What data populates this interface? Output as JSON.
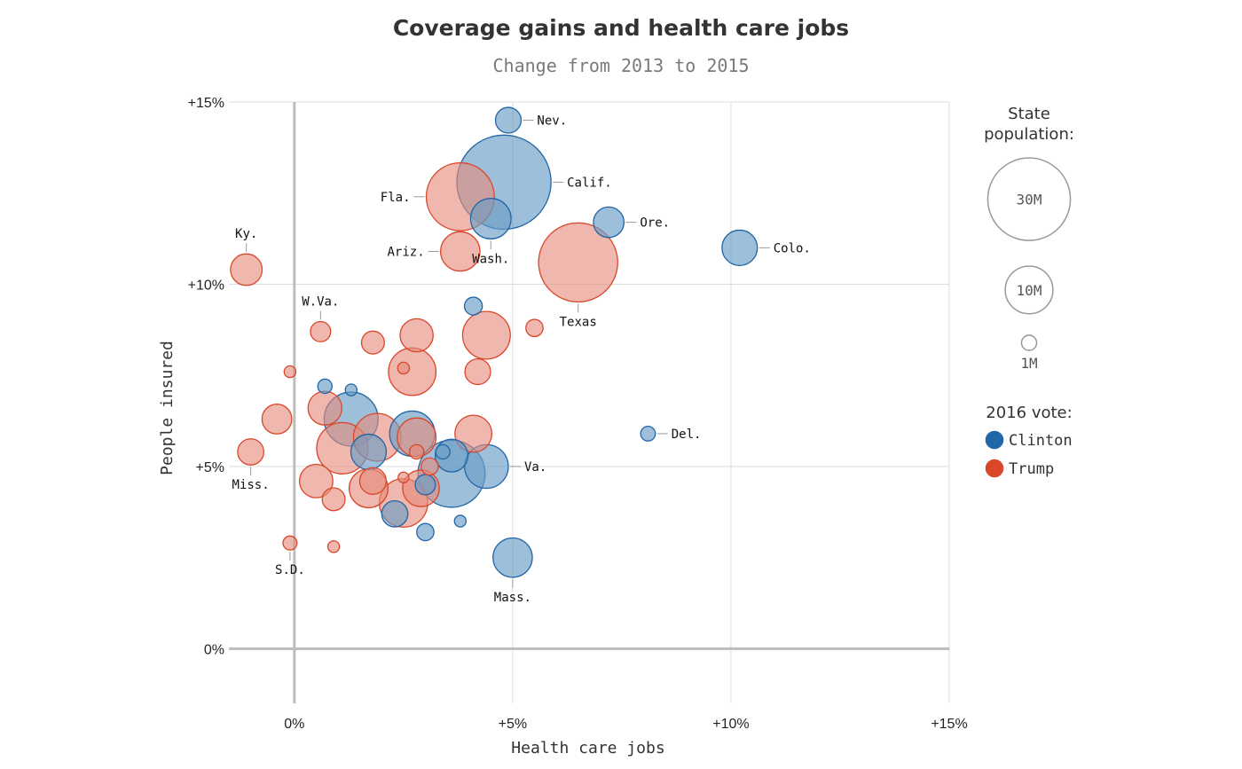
{
  "chart_data": {
    "type": "scatter",
    "title": "Coverage gains and health care jobs",
    "subtitle": "Change from 2013 to 2015",
    "xlabel": "Health care jobs",
    "ylabel": "People insured",
    "xlim": [
      -1.5,
      15
    ],
    "ylim": [
      -1.5,
      15
    ],
    "x_ticks": [
      0,
      5,
      10,
      15
    ],
    "y_ticks": [
      0,
      5,
      10,
      15
    ],
    "x_tick_labels": [
      "0%",
      "+5%",
      "+10%",
      "+15%"
    ],
    "y_tick_labels": [
      "0%",
      "+5%",
      "+10%",
      "+15%"
    ],
    "grid": true,
    "colors": {
      "Clinton": "#2166a6",
      "Trump": "#d9472b"
    },
    "legend": {
      "size_title": "State population:",
      "size_entries": [
        {
          "label": "30M",
          "pop": 30
        },
        {
          "label": "10M",
          "pop": 10
        },
        {
          "label": "1M",
          "pop": 1
        }
      ],
      "vote_title": "2016 vote:",
      "vote_entries": [
        {
          "label": "Clinton",
          "party": "Clinton"
        },
        {
          "label": "Trump",
          "party": "Trump"
        }
      ],
      "placement": "right"
    },
    "points": [
      {
        "label": "Nev.",
        "x": 4.9,
        "y": 14.5,
        "pop": 2.9,
        "party": "Clinton",
        "lpos": "right"
      },
      {
        "label": "Calif.",
        "x": 4.8,
        "y": 12.8,
        "pop": 39,
        "party": "Clinton",
        "lpos": "right"
      },
      {
        "label": "Fla.",
        "x": 3.8,
        "y": 12.4,
        "pop": 20.3,
        "party": "Trump",
        "lpos": "left"
      },
      {
        "label": "Wash.",
        "x": 4.5,
        "y": 11.8,
        "pop": 7.2,
        "party": "Clinton",
        "lpos": "below"
      },
      {
        "label": "Ore.",
        "x": 7.2,
        "y": 11.7,
        "pop": 4.1,
        "party": "Clinton",
        "lpos": "right"
      },
      {
        "label": "Ariz.",
        "x": 3.8,
        "y": 10.9,
        "pop": 6.8,
        "party": "Trump",
        "lpos": "left"
      },
      {
        "label": "Colo.",
        "x": 10.2,
        "y": 11.0,
        "pop": 5.5,
        "party": "Clinton",
        "lpos": "right"
      },
      {
        "label": "Texas",
        "x": 6.5,
        "y": 10.6,
        "pop": 27.5,
        "party": "Trump",
        "lpos": "below"
      },
      {
        "label": "Ky.",
        "x": -1.1,
        "y": 10.4,
        "pop": 4.4,
        "party": "Trump",
        "lpos": "above"
      },
      {
        "label": "W.Va.",
        "x": 0.6,
        "y": 8.7,
        "pop": 1.8,
        "party": "Trump",
        "lpos": "above"
      },
      {
        "label": "Del.",
        "x": 8.1,
        "y": 5.9,
        "pop": 0.95,
        "party": "Clinton",
        "lpos": "right"
      },
      {
        "label": "Va.",
        "x": 4.4,
        "y": 5.0,
        "pop": 8.4,
        "party": "Clinton",
        "lpos": "right"
      },
      {
        "label": "Miss.",
        "x": -1.0,
        "y": 5.4,
        "pop": 3.0,
        "party": "Trump",
        "lpos": "below"
      },
      {
        "label": "S.D.",
        "x": -0.1,
        "y": 2.9,
        "pop": 0.86,
        "party": "Trump",
        "lpos": "below"
      },
      {
        "label": "Mass.",
        "x": 5.0,
        "y": 2.5,
        "pop": 6.8,
        "party": "Clinton",
        "lpos": "below"
      },
      {
        "label": "",
        "x": 4.1,
        "y": 9.4,
        "pop": 1.4,
        "party": "Clinton"
      },
      {
        "label": "",
        "x": 1.8,
        "y": 8.4,
        "pop": 2.3,
        "party": "Trump"
      },
      {
        "label": "",
        "x": 2.8,
        "y": 8.6,
        "pop": 4.8,
        "party": "Trump"
      },
      {
        "label": "",
        "x": 4.4,
        "y": 8.6,
        "pop": 10.0,
        "party": "Trump"
      },
      {
        "label": "",
        "x": 5.5,
        "y": 8.8,
        "pop": 1.3,
        "party": "Trump"
      },
      {
        "label": "",
        "x": 2.7,
        "y": 7.6,
        "pop": 9.9,
        "party": "Trump"
      },
      {
        "label": "",
        "x": 2.5,
        "y": 7.7,
        "pop": 0.6,
        "party": "Trump"
      },
      {
        "label": "",
        "x": 4.2,
        "y": 7.6,
        "pop": 2.9,
        "party": "Trump"
      },
      {
        "label": "",
        "x": -0.1,
        "y": 7.6,
        "pop": 0.6,
        "party": "Trump"
      },
      {
        "label": "",
        "x": 0.7,
        "y": 7.2,
        "pop": 0.9,
        "party": "Clinton"
      },
      {
        "label": "",
        "x": 1.3,
        "y": 7.1,
        "pop": 0.6,
        "party": "Clinton"
      },
      {
        "label": "",
        "x": -0.4,
        "y": 6.3,
        "pop": 3.9,
        "party": "Trump"
      },
      {
        "label": "",
        "x": 0.7,
        "y": 6.6,
        "pop": 5.0,
        "party": "Trump"
      },
      {
        "label": "",
        "x": 1.3,
        "y": 6.3,
        "pop": 12.8,
        "party": "Clinton"
      },
      {
        "label": "",
        "x": 1.1,
        "y": 5.5,
        "pop": 11.6,
        "party": "Trump"
      },
      {
        "label": "",
        "x": 1.9,
        "y": 5.8,
        "pop": 10.0,
        "party": "Trump"
      },
      {
        "label": "",
        "x": 1.7,
        "y": 5.4,
        "pop": 5.5,
        "party": "Clinton"
      },
      {
        "label": "",
        "x": 2.7,
        "y": 5.9,
        "pop": 9.0,
        "party": "Clinton"
      },
      {
        "label": "",
        "x": 2.8,
        "y": 5.8,
        "pop": 6.6,
        "party": "Trump"
      },
      {
        "label": "",
        "x": 2.8,
        "y": 5.4,
        "pop": 0.9,
        "party": "Trump"
      },
      {
        "label": "",
        "x": 3.4,
        "y": 5.4,
        "pop": 0.9,
        "party": "Clinton"
      },
      {
        "label": "",
        "x": 3.6,
        "y": 5.3,
        "pop": 4.7,
        "party": "Clinton"
      },
      {
        "label": "",
        "x": 4.1,
        "y": 5.9,
        "pop": 6.0,
        "party": "Trump"
      },
      {
        "label": "",
        "x": 3.6,
        "y": 4.8,
        "pop": 19.8,
        "party": "Clinton"
      },
      {
        "label": "",
        "x": 3.1,
        "y": 5.0,
        "pop": 1.3,
        "party": "Trump"
      },
      {
        "label": "",
        "x": 0.5,
        "y": 4.6,
        "pop": 4.9,
        "party": "Trump"
      },
      {
        "label": "",
        "x": 0.9,
        "y": 4.1,
        "pop": 2.3,
        "party": "Trump"
      },
      {
        "label": "",
        "x": 1.7,
        "y": 4.4,
        "pop": 6.6,
        "party": "Trump"
      },
      {
        "label": "",
        "x": 1.8,
        "y": 4.6,
        "pop": 3.1,
        "party": "Trump"
      },
      {
        "label": "",
        "x": 2.5,
        "y": 4.7,
        "pop": 0.5,
        "party": "Trump"
      },
      {
        "label": "",
        "x": 2.5,
        "y": 4.0,
        "pop": 10.3,
        "party": "Trump"
      },
      {
        "label": "",
        "x": 2.3,
        "y": 3.7,
        "pop": 3.0,
        "party": "Clinton"
      },
      {
        "label": "",
        "x": 2.9,
        "y": 4.4,
        "pop": 5.9,
        "party": "Trump"
      },
      {
        "label": "",
        "x": 3.0,
        "y": 4.5,
        "pop": 1.8,
        "party": "Clinton"
      },
      {
        "label": "",
        "x": 3.0,
        "y": 3.2,
        "pop": 1.3,
        "party": "Clinton"
      },
      {
        "label": "",
        "x": 3.8,
        "y": 3.5,
        "pop": 0.6,
        "party": "Clinton"
      },
      {
        "label": "",
        "x": 0.9,
        "y": 2.8,
        "pop": 0.6,
        "party": "Trump"
      }
    ]
  }
}
